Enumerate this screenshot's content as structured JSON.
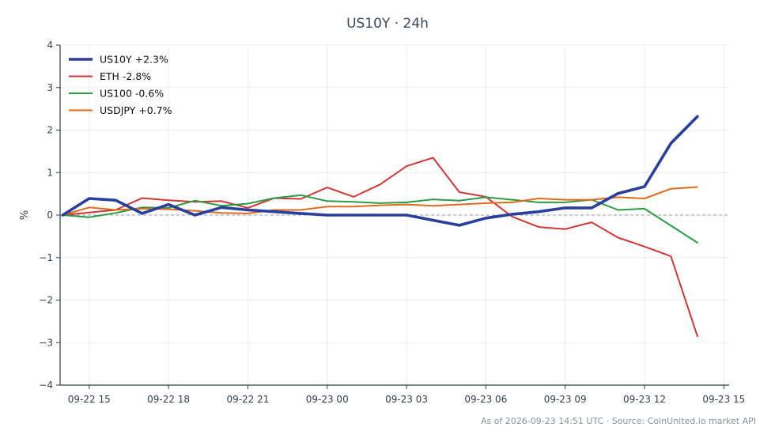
{
  "chart_data": {
    "type": "line",
    "title": "US10Y · 24h",
    "xlabel": "",
    "ylabel": "%",
    "ylim": [
      -4,
      4
    ],
    "yticks": [
      "−4",
      "−3",
      "−2",
      "−1",
      "0",
      "1",
      "2",
      "3",
      "4"
    ],
    "ytick_values": [
      -4,
      -3,
      -2,
      -1,
      0,
      1,
      2,
      3,
      4
    ],
    "xlim": [
      "09-22 13:54",
      "09-23 15:12"
    ],
    "xticks": [
      "09-22 15",
      "09-22 18",
      "09-22 21",
      "09-23 00",
      "09-23 03",
      "09-23 06",
      "09-23 09",
      "09-23 12",
      "09-23 15"
    ],
    "xtick_values": [
      "09-22 15:00",
      "09-22 18:00",
      "09-22 21:00",
      "09-23 00:00",
      "09-23 03:00",
      "09-23 06:00",
      "09-23 09:00",
      "09-23 12:00",
      "09-23 15:00"
    ],
    "x": [
      "09-22 14:00",
      "09-22 15:00",
      "09-22 16:00",
      "09-22 17:00",
      "09-22 18:00",
      "09-22 19:00",
      "09-22 20:00",
      "09-22 21:00",
      "09-22 22:00",
      "09-22 23:00",
      "09-23 00:00",
      "09-23 01:00",
      "09-23 02:00",
      "09-23 03:00",
      "09-23 04:00",
      "09-23 05:00",
      "09-23 06:00",
      "09-23 07:00",
      "09-23 08:00",
      "09-23 09:00",
      "09-23 10:00",
      "09-23 11:00",
      "09-23 12:00",
      "09-23 13:00",
      "09-23 14:00"
    ],
    "grid": true,
    "baseline": 0,
    "legend_position": "top-left",
    "series": [
      {
        "name": "US10Y +2.3%",
        "color": "#2a3f9d",
        "emphasis": true,
        "values": [
          0.0,
          0.39,
          0.35,
          0.04,
          0.25,
          0.0,
          0.18,
          0.12,
          0.08,
          0.04,
          0.0,
          0.0,
          0.0,
          0.0,
          -0.12,
          -0.24,
          -0.07,
          0.02,
          0.08,
          0.17,
          0.17,
          0.51,
          0.67,
          1.69,
          2.32
        ]
      },
      {
        "name": "ETH -2.8%",
        "color": "#cf3636",
        "values": [
          0.0,
          0.06,
          0.12,
          0.4,
          0.35,
          0.31,
          0.33,
          0.17,
          0.4,
          0.38,
          0.65,
          0.43,
          0.72,
          1.15,
          1.35,
          0.54,
          0.43,
          -0.04,
          -0.28,
          -0.33,
          -0.17,
          -0.53,
          -0.74,
          -0.97,
          -2.85
        ]
      },
      {
        "name": "US100 -0.6%",
        "color": "#2d9a46",
        "values": [
          0.0,
          -0.05,
          0.05,
          0.18,
          0.17,
          0.34,
          0.22,
          0.27,
          0.4,
          0.47,
          0.33,
          0.31,
          0.28,
          0.3,
          0.37,
          0.34,
          0.42,
          0.36,
          0.3,
          0.3,
          0.36,
          0.12,
          0.15,
          -0.25,
          -0.65
        ]
      },
      {
        "name": "USDJPY +0.7%",
        "color": "#de6b1d",
        "values": [
          0.0,
          0.18,
          0.12,
          0.15,
          0.14,
          0.1,
          0.05,
          0.04,
          0.12,
          0.12,
          0.2,
          0.2,
          0.23,
          0.25,
          0.22,
          0.25,
          0.28,
          0.3,
          0.39,
          0.36,
          0.36,
          0.42,
          0.39,
          0.62,
          0.66
        ]
      }
    ]
  },
  "footer": {
    "source_note": "As of 2026-09-23 14:51 UTC · Source: CoinUnited.io market API"
  }
}
